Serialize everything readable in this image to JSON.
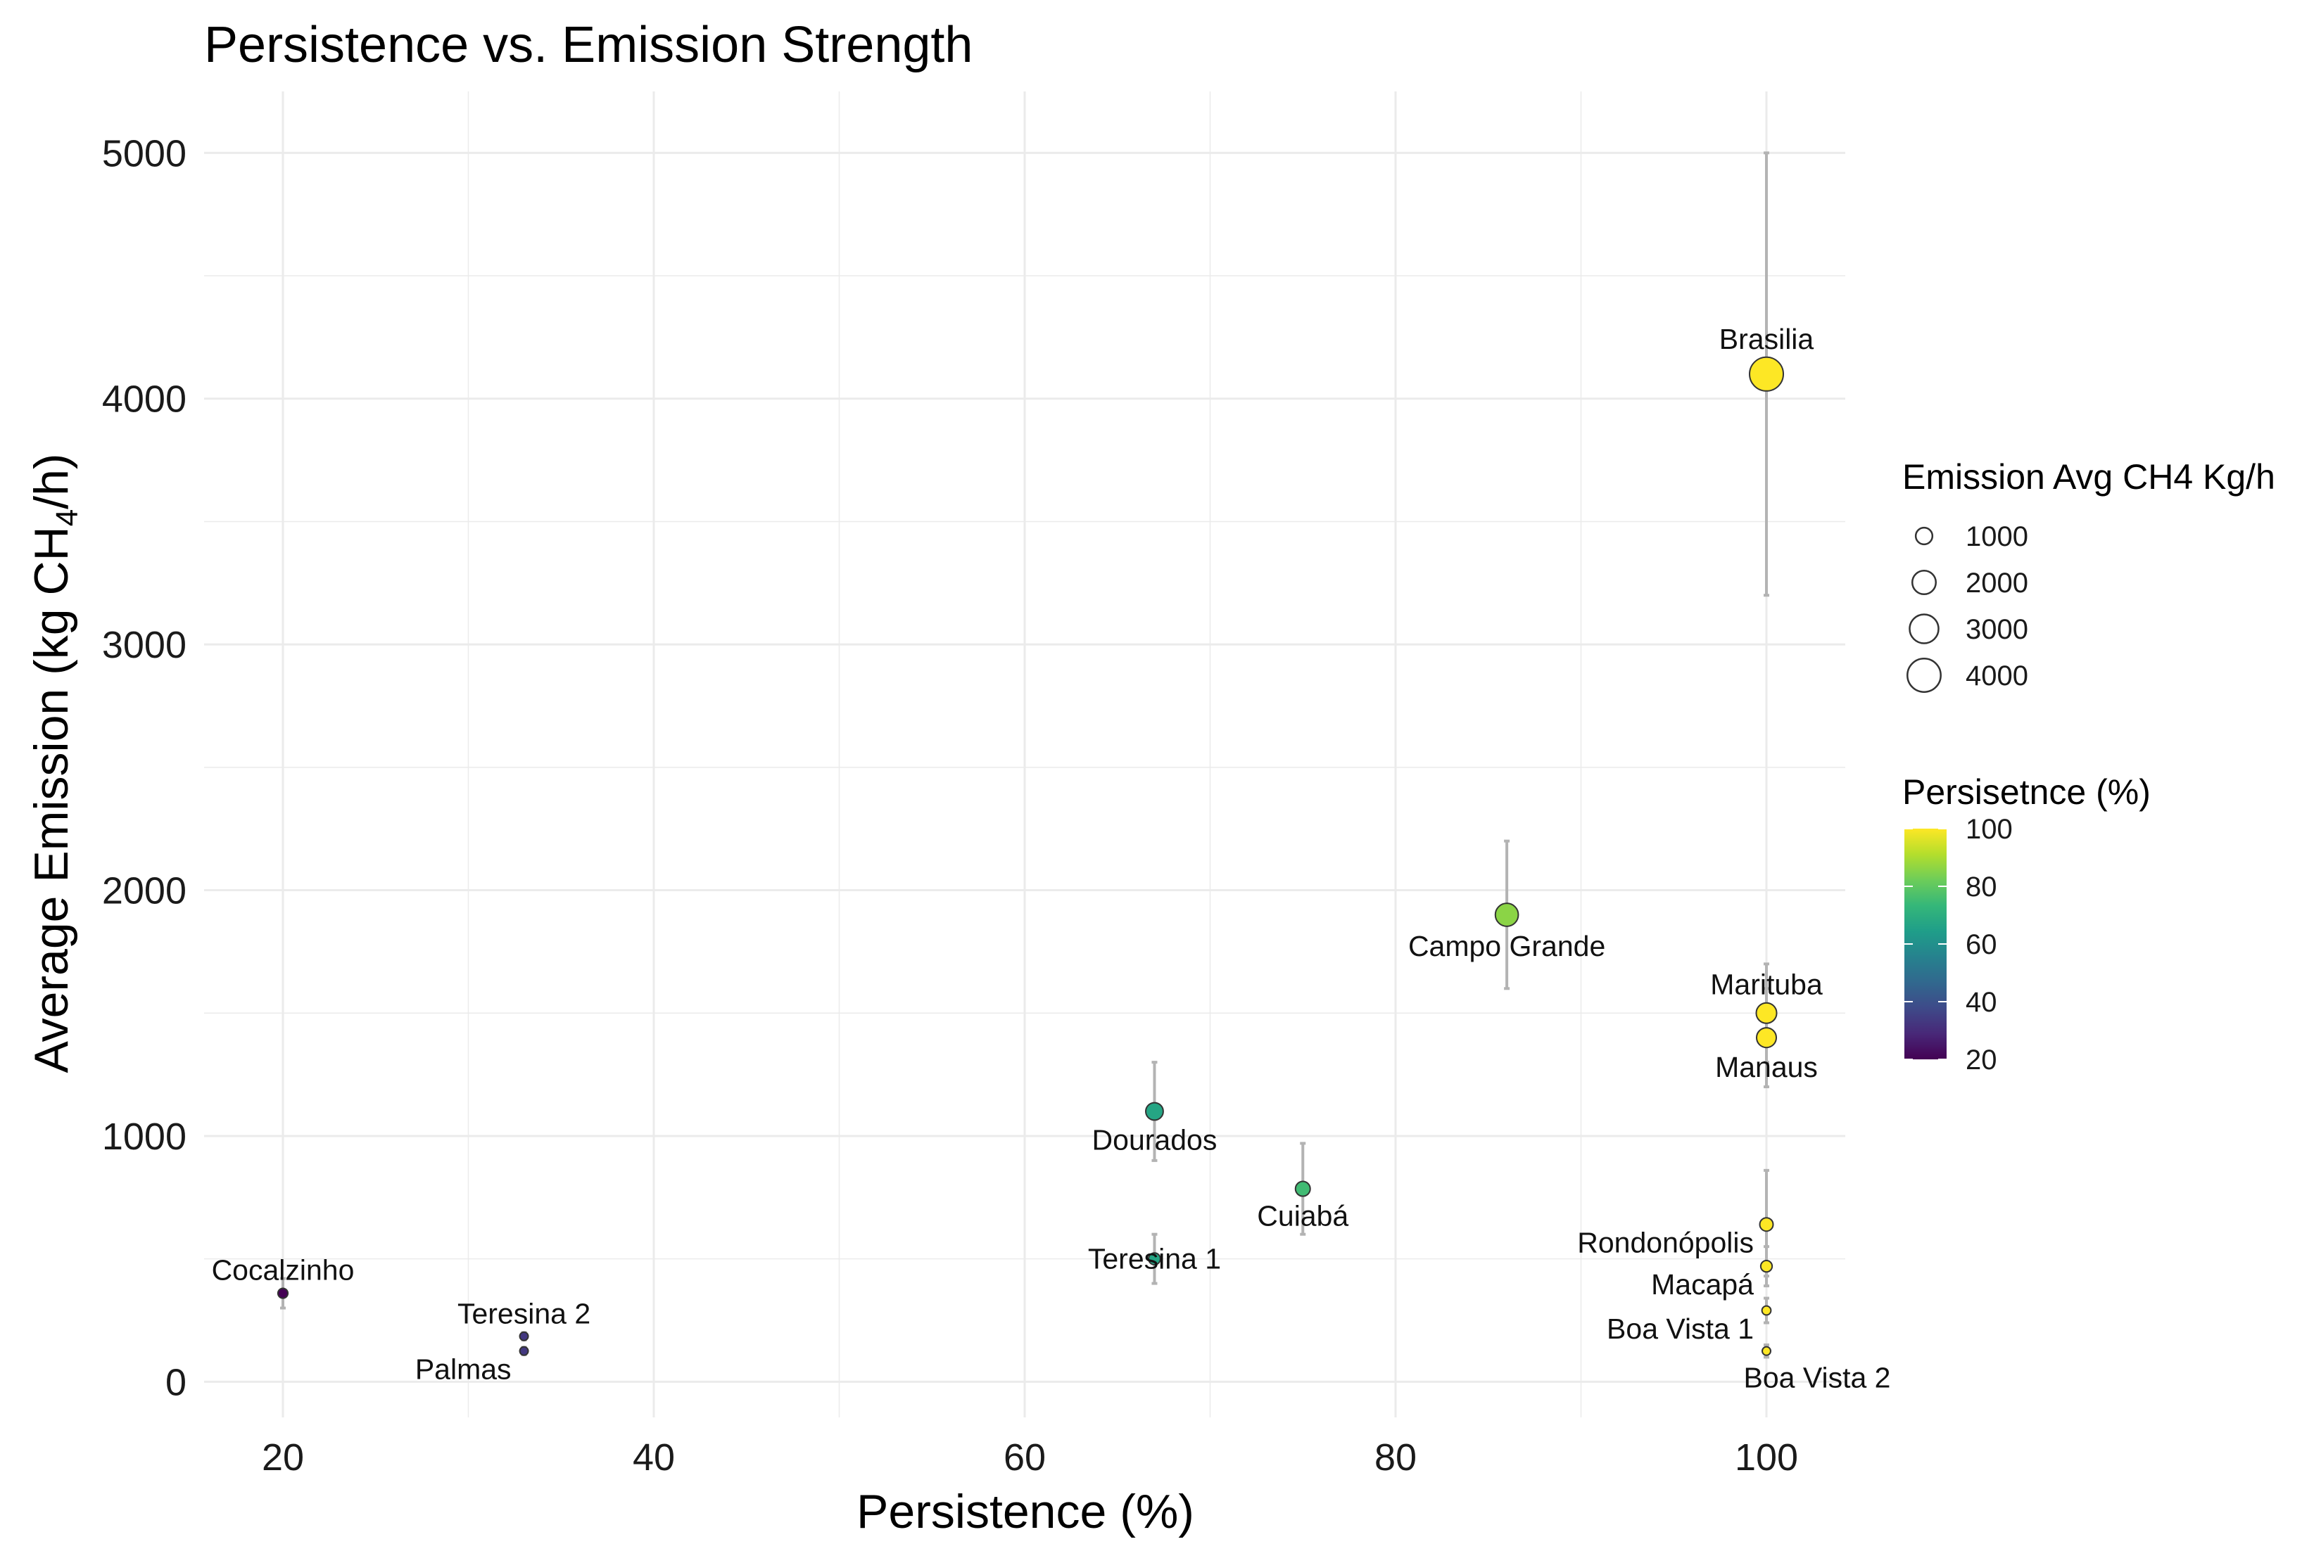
{
  "chart_data": {
    "type": "scatter",
    "title": "Persistence vs. Emission Strength",
    "xlabel": "Persistence (%)",
    "ylabel": {
      "prefix": "Average Emission (kg CH",
      "subscript": "4",
      "suffix": "/h)"
    },
    "xlim": [
      15.75,
      104.25
    ],
    "ylim": [
      -145,
      5250
    ],
    "x_ticks": [
      20,
      40,
      60,
      80,
      100
    ],
    "y_ticks": [
      0,
      1000,
      2000,
      3000,
      4000,
      5000
    ],
    "grid": true,
    "points": [
      {
        "name": "Brasilia",
        "x": 100,
        "y": 4100,
        "err_low": 3200,
        "err_high": 5000,
        "label_side": "above"
      },
      {
        "name": "Campo Grande",
        "x": 86,
        "y": 1900,
        "err_low": 1600,
        "err_high": 2200,
        "label_side": "below"
      },
      {
        "name": "Marituba",
        "x": 100,
        "y": 1500,
        "err_low": 1300,
        "err_high": 1700,
        "label_side": "above"
      },
      {
        "name": "Manaus",
        "x": 100,
        "y": 1400,
        "err_low": 1200,
        "err_high": 1600,
        "label_side": "below"
      },
      {
        "name": "Dourados",
        "x": 67,
        "y": 1100,
        "err_low": 900,
        "err_high": 1300,
        "label_side": "below"
      },
      {
        "name": "Cuiabá",
        "x": 75,
        "y": 785,
        "err_low": 600,
        "err_high": 970,
        "label_side": "below"
      },
      {
        "name": "Rondonópolis",
        "x": 100,
        "y": 640,
        "err_low": 430,
        "err_high": 860,
        "label_side": "below-left"
      },
      {
        "name": "Teresina 1",
        "x": 67,
        "y": 500,
        "err_low": 400,
        "err_high": 600,
        "label_side": "center"
      },
      {
        "name": "Macapá",
        "x": 100,
        "y": 470,
        "err_low": 390,
        "err_high": 550,
        "label_side": "below-left"
      },
      {
        "name": "Cocalzinho",
        "x": 20,
        "y": 360,
        "err_low": 300,
        "err_high": 420,
        "label_side": "above"
      },
      {
        "name": "Boa Vista 1",
        "x": 100,
        "y": 290,
        "err_low": 240,
        "err_high": 340,
        "label_side": "below-left"
      },
      {
        "name": "Teresina 2",
        "x": 33,
        "y": 185,
        "err_low": 170,
        "err_high": 200,
        "label_side": "above"
      },
      {
        "name": "Palmas",
        "x": 33,
        "y": 125,
        "err_low": 110,
        "err_high": 140,
        "label_side": "below-left"
      },
      {
        "name": "Boa Vista 2",
        "x": 100,
        "y": 125,
        "err_low": 100,
        "err_high": 150,
        "label_side": "below-right"
      }
    ],
    "size_legend": {
      "title": "Emission Avg CH4 Kg/h",
      "breaks": [
        1000,
        2000,
        3000,
        4000
      ],
      "labels": [
        "1000",
        "2000",
        "3000",
        "4000"
      ]
    },
    "color_legend": {
      "title": "Persisetnce (%)",
      "breaks": [
        20,
        40,
        60,
        80,
        100
      ],
      "labels": [
        "20",
        "40",
        "60",
        "80",
        "100"
      ],
      "palette": "viridis"
    },
    "colors": {
      "viridis": [
        "#440154",
        "#482878",
        "#3E4A89",
        "#31688E",
        "#26828E",
        "#1F9E89",
        "#35B779",
        "#6DCD59",
        "#B4DE2C",
        "#FDE725"
      ],
      "grid": "#ebebeb",
      "errorbar": "#b3b3b3",
      "point_stroke": "#333333"
    }
  }
}
